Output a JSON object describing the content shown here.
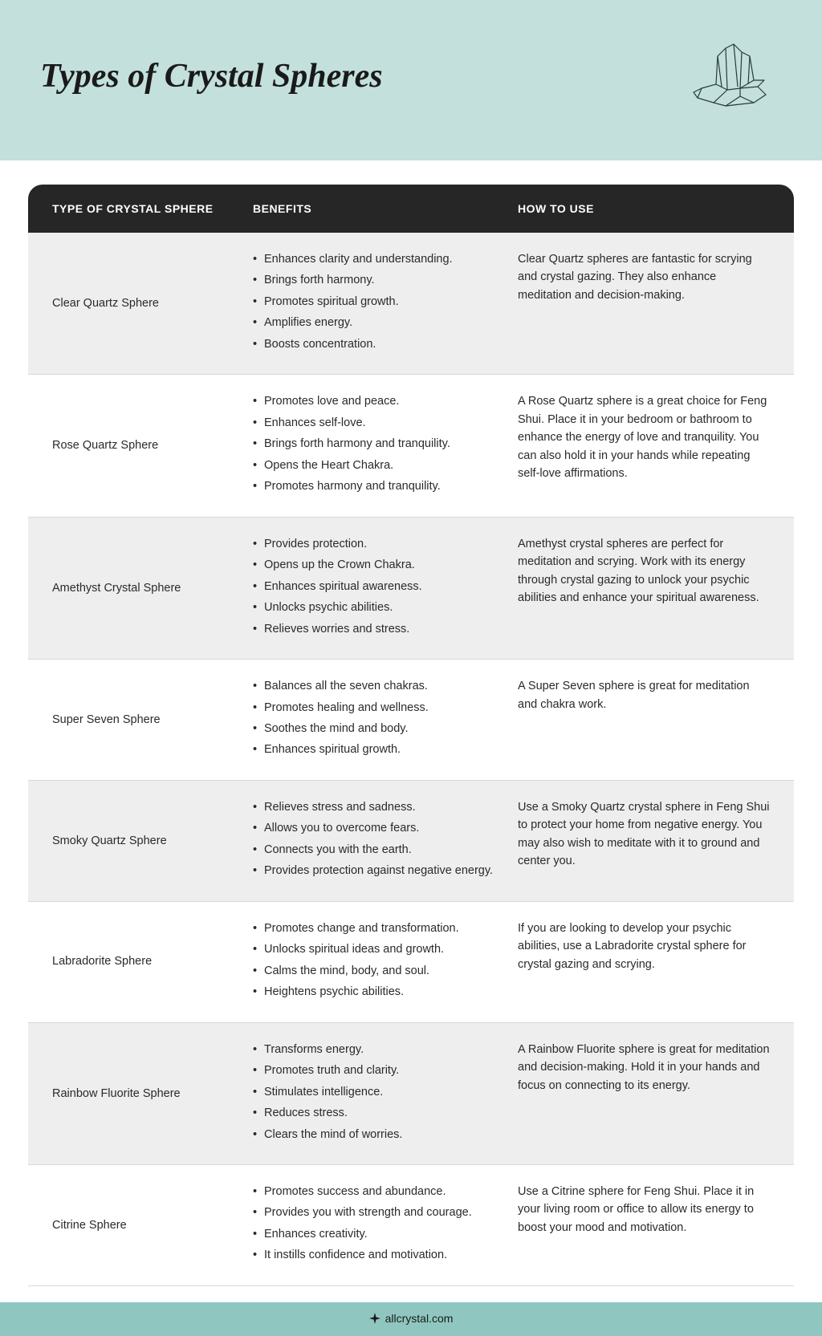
{
  "header": {
    "title": "Types of Crystal Spheres"
  },
  "columns": {
    "type": "TYPE OF CRYSTAL SPHERE",
    "benefits": "BENEFITS",
    "howto": "HOW TO USE"
  },
  "rows": [
    {
      "type": "Clear Quartz Sphere",
      "benefits": [
        "Enhances clarity and understanding.",
        "Brings forth harmony.",
        "Promotes spiritual growth.",
        "Amplifies energy.",
        "Boosts concentration."
      ],
      "howto": "Clear Quartz spheres are fantastic for scrying and crystal gazing. They also enhance meditation and decision-making."
    },
    {
      "type": "Rose Quartz Sphere",
      "benefits": [
        "Promotes love and peace.",
        "Enhances self-love.",
        "Brings forth harmony and tranquility.",
        "Opens the Heart Chakra.",
        "Promotes harmony and tranquility."
      ],
      "howto": "A Rose Quartz sphere is a great choice for Feng Shui. Place it in your bedroom or bathroom to enhance the energy of love and tranquility. You can also hold it in your hands while repeating self-love affirmations."
    },
    {
      "type": "Amethyst Crystal Sphere",
      "benefits": [
        "Provides protection.",
        "Opens up the Crown Chakra.",
        "Enhances spiritual awareness.",
        "Unlocks psychic abilities.",
        "Relieves worries and stress."
      ],
      "howto": "Amethyst crystal spheres are perfect for meditation and scrying. Work with its energy through crystal gazing to unlock your psychic abilities and enhance your spiritual awareness."
    },
    {
      "type": "Super Seven Sphere",
      "benefits": [
        "Balances all the seven chakras.",
        "Promotes healing and wellness.",
        "Soothes the mind and body.",
        "Enhances spiritual growth."
      ],
      "howto": "A Super Seven sphere is great for meditation and chakra work."
    },
    {
      "type": "Smoky Quartz Sphere",
      "benefits": [
        "Relieves stress and sadness.",
        "Allows you to overcome fears.",
        "Connects you with the earth.",
        "Provides protection against negative energy."
      ],
      "howto": "Use a Smoky Quartz crystal sphere in Feng Shui to protect your home from negative energy. You may also wish to meditate with it to ground and center you."
    },
    {
      "type": "Labradorite Sphere",
      "benefits": [
        "Promotes change and transformation.",
        "Unlocks spiritual ideas and growth.",
        "Calms the mind, body, and soul.",
        "Heightens psychic abilities."
      ],
      "howto": "If you are looking to develop your psychic abilities, use a Labradorite crystal sphere for crystal gazing and scrying."
    },
    {
      "type": "Rainbow Fluorite Sphere",
      "benefits": [
        "Transforms energy.",
        "Promotes truth and clarity.",
        "Stimulates intelligence.",
        "Reduces stress.",
        "Clears the mind of worries."
      ],
      "howto": "A Rainbow Fluorite sphere is great for meditation and decision-making. Hold it in your hands and focus on connecting to its energy."
    },
    {
      "type": "Citrine Sphere",
      "benefits": [
        "Promotes success and abundance.",
        "Provides you with strength and courage.",
        "Enhances creativity.",
        "It instills confidence and motivation."
      ],
      "howto": "Use a Citrine sphere for Feng Shui. Place it in your living room or office to allow its energy to boost your mood and motivation."
    }
  ],
  "footer": {
    "site": "allcrystal.com"
  },
  "colors": {
    "header_bg": "#c3e0dd",
    "table_header_bg": "#262626",
    "row_alt_bg": "#eeeeee",
    "footer_bg": "#8fc7c0",
    "text": "#2a2a2a"
  }
}
